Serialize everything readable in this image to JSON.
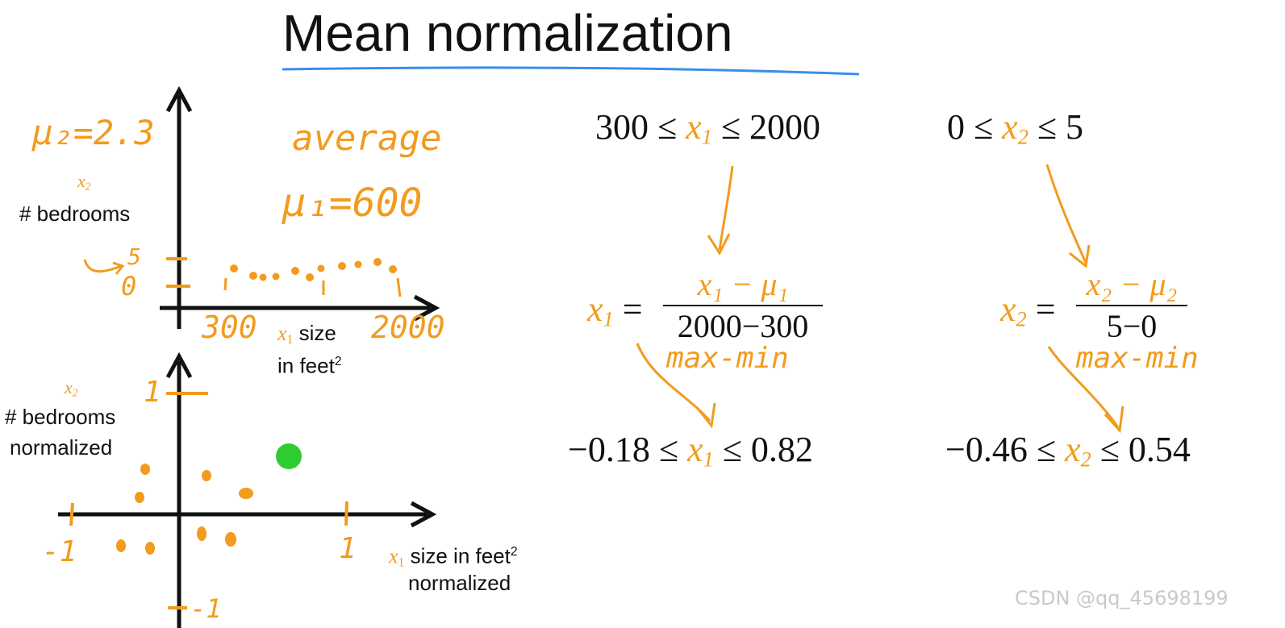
{
  "title": "Mean normalization",
  "top_chart": {
    "y_label_var": "x",
    "y_label_sub": "2",
    "y_label": "# bedrooms",
    "x_label_var": "x",
    "x_label_sub": "1",
    "x_label_line1": "size",
    "x_label_line2": "in feet",
    "x_label_sup": "2",
    "mu2": "μ₂=2.3",
    "average": "average",
    "mu1": "μ₁=600",
    "tick_5": "5",
    "tick_0": "0",
    "tick_300": "300",
    "tick_2000": "2000"
  },
  "bottom_chart": {
    "y_label_var": "x",
    "y_label_sub": "2",
    "y_label_line1": "# bedrooms",
    "y_label_line2": "normalized",
    "x_label_var": "x",
    "x_label_sub": "1",
    "x_label_line1": "size in feet",
    "x_label_sup": "2",
    "x_label_line2": "normalized",
    "tick_y_1": "1",
    "tick_x_neg1": "-1",
    "tick_x_1": "1",
    "tick_y_neg1": "-1"
  },
  "left_formula": {
    "range_before_left": "300 ≤",
    "range_before_var": "x",
    "range_before_sub": "1",
    "range_before_right": "≤ 2000",
    "lhs_var": "x",
    "lhs_sub": "1",
    "equals": "=",
    "numerator": "x₁ − μ₁",
    "denominator": "2000−300",
    "note": "max-min",
    "range_after_left": "−0.18 ≤",
    "range_after_var": "x",
    "range_after_sub": "1",
    "range_after_right": "≤ 0.82"
  },
  "right_formula": {
    "range_before_left": "0 ≤",
    "range_before_var": "x",
    "range_before_sub": "2",
    "range_before_right": "≤ 5",
    "lhs_var": "x",
    "lhs_sub": "2",
    "equals": "=",
    "numerator": "x₂ − μ₂",
    "denominator": "5−0",
    "note": "max-min",
    "range_after_left": "−0.46 ≤",
    "range_after_var": "x",
    "range_after_sub": "2",
    "range_after_right": "≤ 0.54"
  },
  "watermark": "CSDN @qq_45698199",
  "colors": {
    "accent": "#f29b1d",
    "underline": "#3b8ee8",
    "ink": "#111111",
    "highlight_dot": "#2fcc2f"
  }
}
